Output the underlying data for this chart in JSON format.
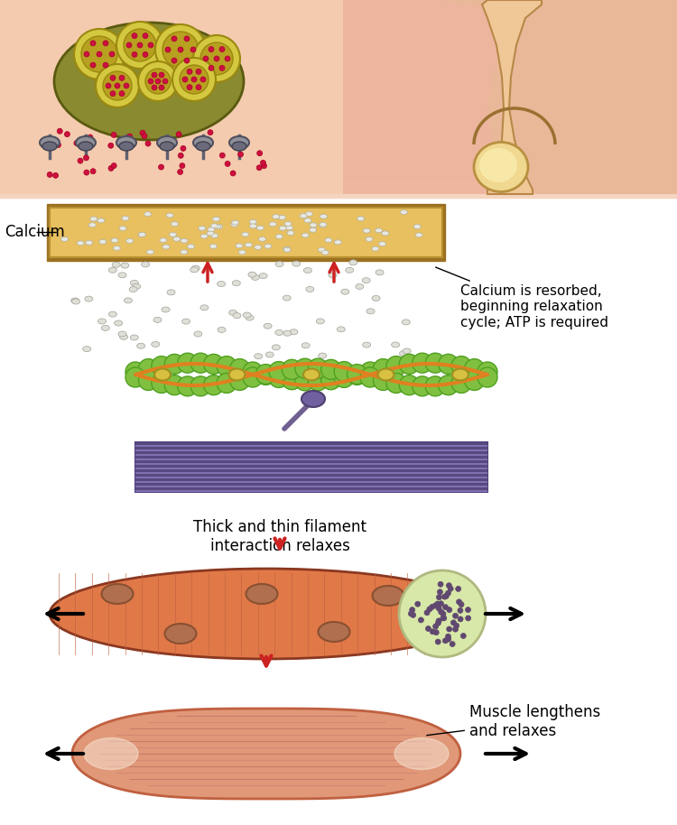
{
  "bg_color": "#ffffff",
  "skin_bg_color": "#f5d5c0",
  "skin_bg_color2": "#f0c0a0",
  "neuron_body_color": "#8a8a30",
  "neuron_body_border": "#5a5a10",
  "vesicle_outer": "#c8b840",
  "vesicle_inner": "#e8003c",
  "receptor_color": "#808090",
  "synapse_color": "#d4a840",
  "synapse_border": "#8a6820",
  "calcium_dot_color": "#d0d0d0",
  "calcium_dot_border": "#909090",
  "arrow_red": "#cc2222",
  "thin_filament_green": "#6aaa30",
  "thin_filament_orange": "#e08020",
  "thin_filament_yellow": "#e8c840",
  "myosin_head_color": "#706090",
  "thick_filament_purple": "#7060a0",
  "thick_filament_stripe": "#5048808",
  "muscle_fiber_color": "#e07848",
  "muscle_fiber_stripe": "#c05030",
  "muscle_fiber_border": "#8a3820",
  "nucleus_color": "#c07050",
  "cross_section_bg": "#d8e8b0",
  "cross_section_dot": "#604870",
  "spindle_color": "#e09878",
  "spindle_border": "#c06040",
  "label_calcium": "Calcium",
  "label_calcium_resorbed": "Calcium is resorbed,\nbeginning relaxation\ncycle; ATP is required",
  "label_filament": "Thick and thin filament\ninteraction relaxes",
  "label_muscle": "Muscle lengthens\nand relaxes",
  "figwidth": 7.5,
  "figheight": 9.14,
  "dpi": 100
}
